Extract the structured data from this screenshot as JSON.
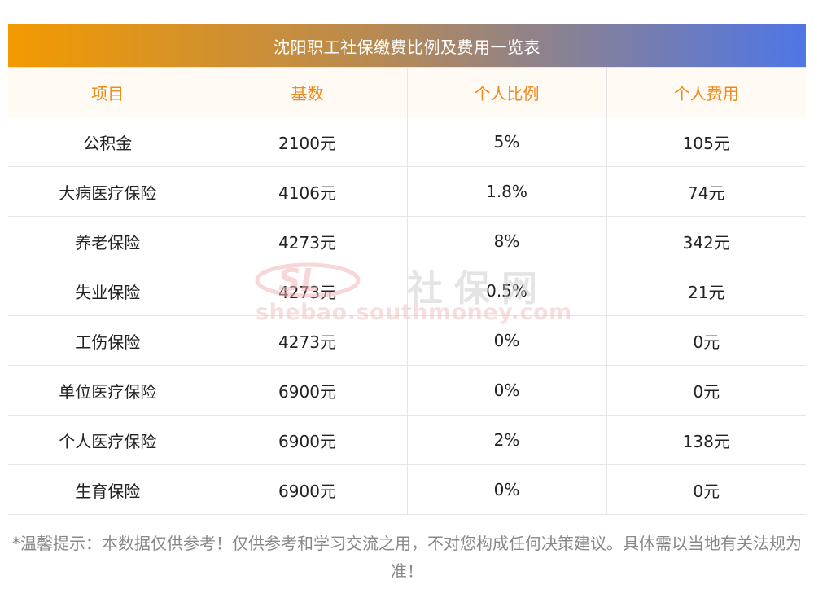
{
  "title": "沈阳职工社保缴费比例及费用一览表",
  "headers": [
    "项目",
    "基数",
    "个人比例",
    "个人费用"
  ],
  "rows": [
    [
      "公积金",
      "2100元",
      "5%",
      "105元"
    ],
    [
      "大病医疗保险",
      "4106元",
      "1.8%",
      "74元"
    ],
    [
      "养老保险",
      "4273元",
      "8%",
      "342元"
    ],
    [
      "失业保险",
      "4273元",
      "0.5%",
      "21元"
    ],
    [
      "工伤保险",
      "4273元",
      "0%",
      "0元"
    ],
    [
      "单位医疗保险",
      "6900元",
      "0%",
      "0元"
    ],
    [
      "个人医疗保险",
      "6900元",
      "2%",
      "138元"
    ],
    [
      "生育保险",
      "6900元",
      "0%",
      "0元"
    ]
  ],
  "watermark": {
    "logo_text": "SL",
    "site_name": "社保网",
    "url": "shebao.southmoney.com"
  },
  "note": "*温馨提示：本数据仅供参考！仅供参考和学习交流之用，不对您构成任何决策建议。具体需以当地有关法规为准！",
  "colors": {
    "header_text": "#ee8a1c",
    "title_gradient_start": "#f39a00",
    "title_gradient_end": "#4f76e6",
    "note_text": "#888888"
  }
}
